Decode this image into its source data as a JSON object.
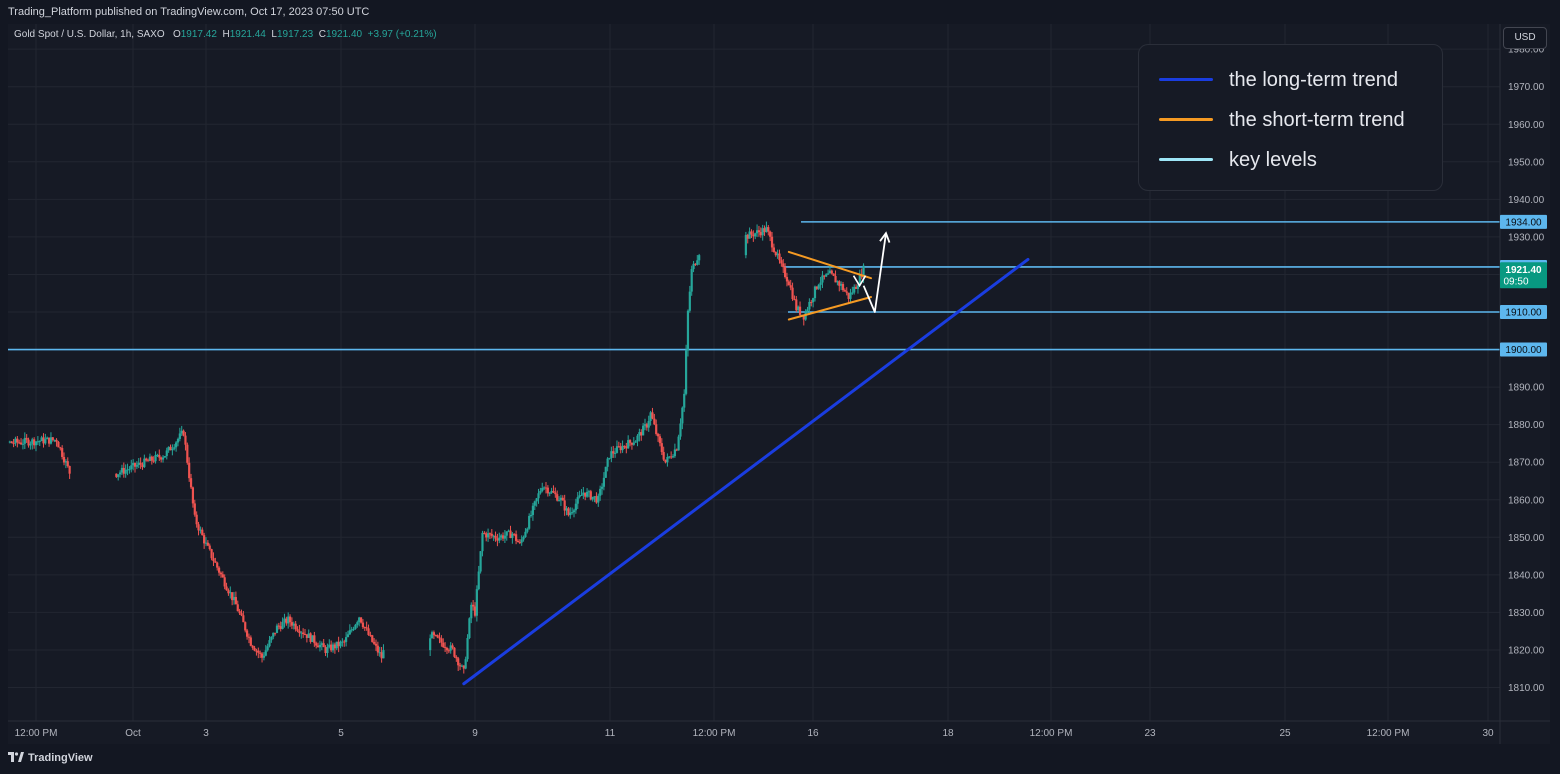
{
  "header": {
    "publisher_text": "Trading_Platform published on TradingView.com, Oct 17, 2023 07:50 UTC"
  },
  "symbol": {
    "title": "Gold Spot / U.S. Dollar, 1h, SAXO",
    "open_label": "O",
    "open": "1917.42",
    "high_label": "H",
    "high": "1921.44",
    "low_label": "L",
    "low": "1917.23",
    "close_label": "C",
    "close": "1921.40",
    "change": "+3.97 (+0.21%)"
  },
  "currency_button": "USD",
  "legend": {
    "items": [
      {
        "label": "the long-term trend",
        "color": "#1a3de0"
      },
      {
        "label": "the short-term trend",
        "color": "#f59a23"
      },
      {
        "label": "key levels",
        "color": "#9ee6f7"
      }
    ]
  },
  "footer": {
    "logo_text": "TradingView"
  },
  "colors": {
    "up": "#26a69a",
    "down": "#ef5350",
    "background": "#161a25",
    "grid": "#222631",
    "key_level": "#5db7ee",
    "key_label_bg": "#5db7ee",
    "price_label_bg": "#089981",
    "projection": "#ffffff"
  },
  "chart_data": {
    "type": "candlestick",
    "title": "Gold Spot / U.S. Dollar, 1h, SAXO",
    "ylim": [
      1805,
      1983
    ],
    "y_ticks": [
      "1810.00",
      "1820.00",
      "1830.00",
      "1840.00",
      "1850.00",
      "1860.00",
      "1870.00",
      "1880.00",
      "1890.00",
      "1900.00",
      "1910.00",
      "1920.00",
      "1930.00",
      "1940.00",
      "1950.00",
      "1960.00",
      "1970.00",
      "1980.00"
    ],
    "x_ticks": [
      "12:00 PM",
      "Oct",
      "3",
      "5",
      "9",
      "11",
      "12:00 PM",
      "16",
      "18",
      "12:00 PM",
      "23",
      "25",
      "12:00 PM",
      "30"
    ],
    "last_price": {
      "value": "1921.40",
      "countdown": "09:50"
    },
    "key_levels": [
      {
        "value": 1934.0,
        "label": "1934.00"
      },
      {
        "value": 1922.0,
        "label": "1922.00"
      },
      {
        "value": 1910.0,
        "label": "1910.00"
      },
      {
        "value": 1900.0,
        "label": "1900.00"
      }
    ],
    "price_path": [
      {
        "date": "Sep 28 10:00",
        "close": 1875
      },
      {
        "date": "Sep 29 16:00",
        "close": 1876
      },
      {
        "date": "Sep 30",
        "close": 1866
      },
      {
        "date": "Oct 1",
        "close": 1867
      },
      {
        "date": "Oct 2 02:00",
        "close": 1872
      },
      {
        "date": "Oct 2 12:00",
        "close": 1878
      },
      {
        "date": "Oct 2 18:00",
        "close": 1855
      },
      {
        "date": "Oct 3 00:00",
        "close": 1848
      },
      {
        "date": "Oct 3 08:00",
        "close": 1840
      },
      {
        "date": "Oct 3 16:00",
        "close": 1832
      },
      {
        "date": "Oct 4 00:00",
        "close": 1822
      },
      {
        "date": "Oct 4 06:00",
        "close": 1818
      },
      {
        "date": "Oct 4 14:00",
        "close": 1826
      },
      {
        "date": "Oct 4 20:00",
        "close": 1828
      },
      {
        "date": "Oct 5 06:00",
        "close": 1824
      },
      {
        "date": "Oct 5 16:00",
        "close": 1820
      },
      {
        "date": "Oct 6 02:00",
        "close": 1822
      },
      {
        "date": "Oct 6 10:00",
        "close": 1829
      },
      {
        "date": "Oct 6 16:00",
        "close": 1823
      },
      {
        "date": "Oct 6 22:00",
        "close": 1818
      },
      {
        "date": "Oct 7",
        "close": 1821
      },
      {
        "date": "Oct 8",
        "close": 1824
      },
      {
        "date": "Oct 8 12:00",
        "close": 1820
      },
      {
        "date": "Oct 8 18:00",
        "close": 1814
      },
      {
        "date": "Oct 8 22:00",
        "close": 1832
      },
      {
        "date": "Oct 9 00:00",
        "close": 1830
      },
      {
        "date": "Oct 9 04:00",
        "close": 1851
      },
      {
        "date": "Oct 9 12:00",
        "close": 1850
      },
      {
        "date": "Oct 9 20:00",
        "close": 1851
      },
      {
        "date": "Oct 10 00:00",
        "close": 1848
      },
      {
        "date": "Oct 10 06:00",
        "close": 1856
      },
      {
        "date": "Oct 10 12:00",
        "close": 1864
      },
      {
        "date": "Oct 10 22:00",
        "close": 1860
      },
      {
        "date": "Oct 11 02:00",
        "close": 1856
      },
      {
        "date": "Oct 11 10:00",
        "close": 1862
      },
      {
        "date": "Oct 11 18:00",
        "close": 1860
      },
      {
        "date": "Oct 12 00:00",
        "close": 1872
      },
      {
        "date": "Oct 12 06:00",
        "close": 1874
      },
      {
        "date": "Oct 12 14:00",
        "close": 1876
      },
      {
        "date": "Oct 12 20:00",
        "close": 1880
      },
      {
        "date": "Oct 12 22:00",
        "close": 1883
      },
      {
        "date": "Oct 13 02:00",
        "close": 1876
      },
      {
        "date": "Oct 13 06:00",
        "close": 1870
      },
      {
        "date": "Oct 13 12:00",
        "close": 1874
      },
      {
        "date": "Oct 13 16:00",
        "close": 1888
      },
      {
        "date": "Oct 13 18:00",
        "close": 1910
      },
      {
        "date": "Oct 13 20:00",
        "close": 1921
      },
      {
        "date": "Oct 14 00:00",
        "close": 1926
      },
      {
        "date": "Oct 15 12:00",
        "close": 1932
      },
      {
        "date": "Oct 15 20:00",
        "close": 1922
      },
      {
        "date": "Oct 16 00:00",
        "close": 1918
      },
      {
        "date": "Oct 16 04:00",
        "close": 1911
      },
      {
        "date": "Oct 16 08:00",
        "close": 1909
      },
      {
        "date": "Oct 16 16:00",
        "close": 1918
      },
      {
        "date": "Oct 16 22:00",
        "close": 1920
      },
      {
        "date": "Oct 17 04:00",
        "close": 1917
      },
      {
        "date": "Oct 17 08:00",
        "close": 1914
      },
      {
        "date": "Oct 17 12:00",
        "close": 1917
      },
      {
        "date": "Oct 17 16:00",
        "close": 1921.4
      }
    ],
    "drawings": {
      "long_term_trend": {
        "from": {
          "date": "Oct 8 18:00",
          "price": 1811
        },
        "to": {
          "date": "Oct 21 08:00",
          "price": 1924
        }
      },
      "short_term_trend_upper": {
        "from": {
          "date": "Oct 16 00:00",
          "price": 1926
        },
        "to": {
          "date": "Oct 17 20:00",
          "price": 1919
        }
      },
      "short_term_trend_lower": {
        "from": {
          "date": "Oct 16 00:00",
          "price": 1908
        },
        "to": {
          "date": "Oct 17 20:00",
          "price": 1914
        }
      },
      "projection_path": [
        {
          "date": "Oct 17 16:00",
          "price": 1917
        },
        {
          "date": "Oct 17 22:00",
          "price": 1910
        },
        {
          "date": "Oct 18 04:00",
          "price": 1931
        }
      ]
    }
  }
}
